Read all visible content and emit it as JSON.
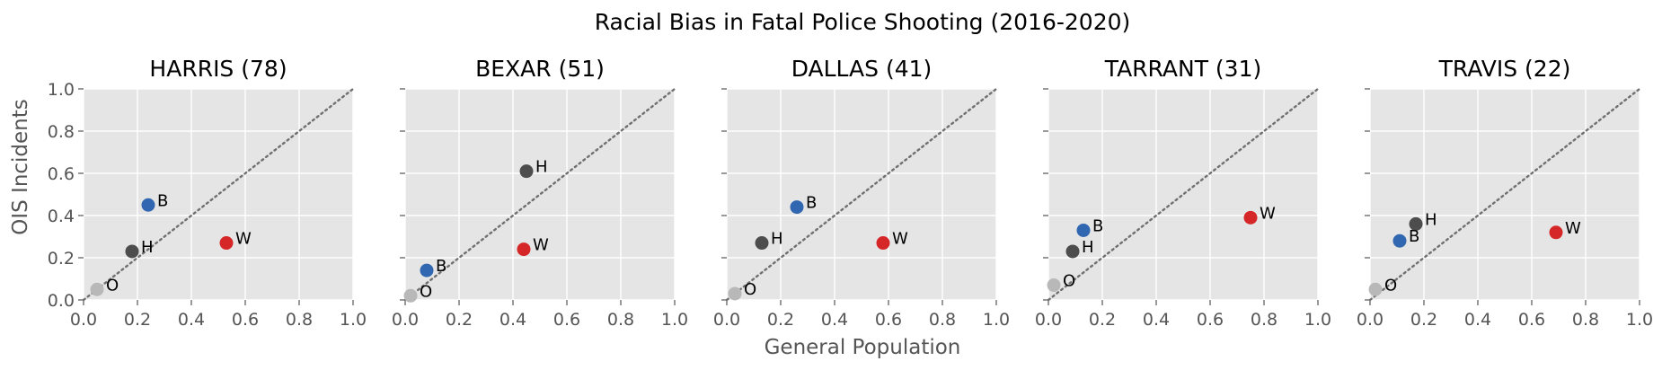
{
  "chart_data": {
    "type": "scatter",
    "title": "Racial Bias in Fatal Police Shooting (2016-2020)",
    "xlabel": "General Population",
    "ylabel": "OIS Incidents",
    "xlim": [
      0,
      1
    ],
    "ylim": [
      0,
      1
    ],
    "x_ticks": [
      "0.0",
      "0.2",
      "0.4",
      "0.6",
      "0.8",
      "1.0"
    ],
    "y_ticks": [
      "0.0",
      "0.2",
      "0.4",
      "0.6",
      "0.8",
      "1.0"
    ],
    "grid": true,
    "reference_line": "y = x (dotted)",
    "colors": {
      "W": "#d62728",
      "B": "#3166b0",
      "H": "#4d4d4d",
      "O": "#b8b8b8",
      "panel_bg": "#e5e5e5"
    },
    "panels": [
      {
        "title": "HARRIS (78)",
        "points": [
          {
            "label": "W",
            "x": 0.53,
            "y": 0.27
          },
          {
            "label": "B",
            "x": 0.24,
            "y": 0.45
          },
          {
            "label": "H",
            "x": 0.18,
            "y": 0.23
          },
          {
            "label": "O",
            "x": 0.05,
            "y": 0.05
          }
        ]
      },
      {
        "title": "BEXAR (51)",
        "points": [
          {
            "label": "H",
            "x": 0.45,
            "y": 0.61
          },
          {
            "label": "W",
            "x": 0.44,
            "y": 0.24
          },
          {
            "label": "B",
            "x": 0.08,
            "y": 0.14
          },
          {
            "label": "O",
            "x": 0.02,
            "y": 0.02
          }
        ]
      },
      {
        "title": "DALLAS (41)",
        "points": [
          {
            "label": "B",
            "x": 0.26,
            "y": 0.44
          },
          {
            "label": "W",
            "x": 0.58,
            "y": 0.27
          },
          {
            "label": "H",
            "x": 0.13,
            "y": 0.27
          },
          {
            "label": "O",
            "x": 0.03,
            "y": 0.03
          }
        ]
      },
      {
        "title": "TARRANT (31)",
        "points": [
          {
            "label": "W",
            "x": 0.75,
            "y": 0.39
          },
          {
            "label": "B",
            "x": 0.13,
            "y": 0.33
          },
          {
            "label": "H",
            "x": 0.09,
            "y": 0.23
          },
          {
            "label": "O",
            "x": 0.02,
            "y": 0.07
          }
        ]
      },
      {
        "title": "TRAVIS (22)",
        "points": [
          {
            "label": "W",
            "x": 0.69,
            "y": 0.32
          },
          {
            "label": "H",
            "x": 0.17,
            "y": 0.36
          },
          {
            "label": "B",
            "x": 0.11,
            "y": 0.28
          },
          {
            "label": "O",
            "x": 0.02,
            "y": 0.05
          }
        ]
      }
    ]
  }
}
